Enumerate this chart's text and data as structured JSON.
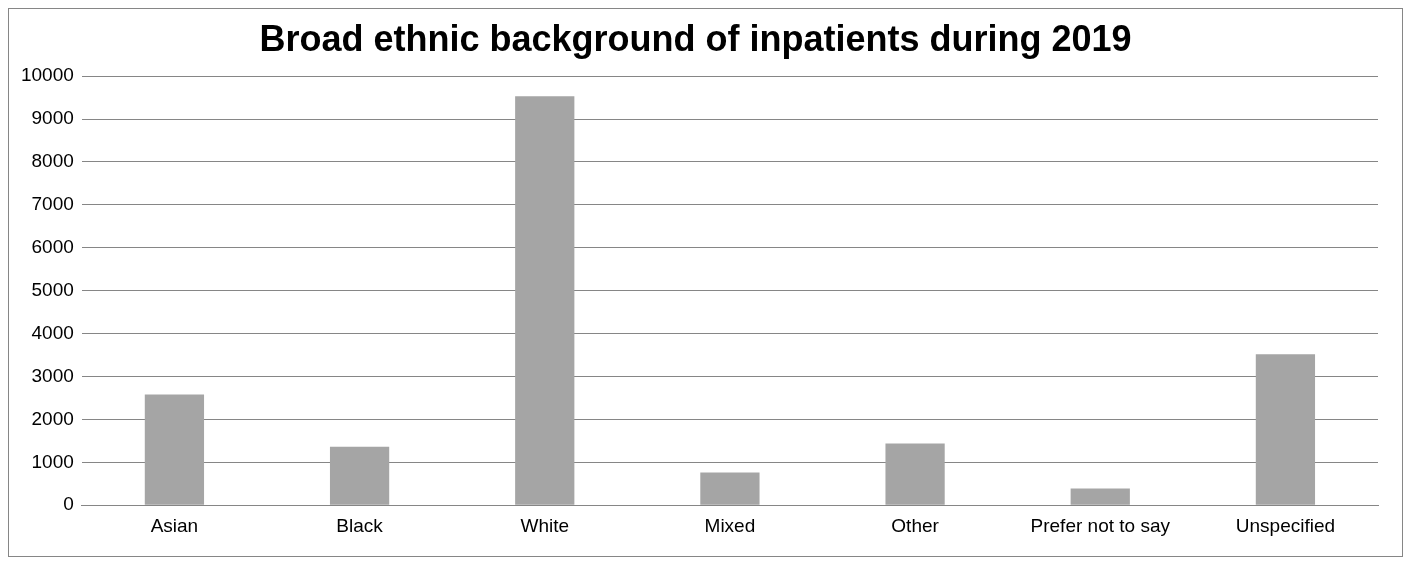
{
  "chart_data": {
    "type": "bar",
    "title": "Broad ethnic background of inpatients during 2019",
    "categories": [
      "Asian",
      "Black",
      "White",
      "Mixed",
      "Other",
      "Prefer not to say",
      "Unspecified"
    ],
    "values": [
      2580,
      1360,
      9530,
      760,
      1440,
      390,
      3520
    ],
    "color": "#a5a5a5",
    "ylim": [
      0,
      10000
    ],
    "yticks": [
      0,
      1000,
      2000,
      3000,
      4000,
      5000,
      6000,
      7000,
      8000,
      9000,
      10000
    ],
    "grid": "y",
    "legend": false
  }
}
